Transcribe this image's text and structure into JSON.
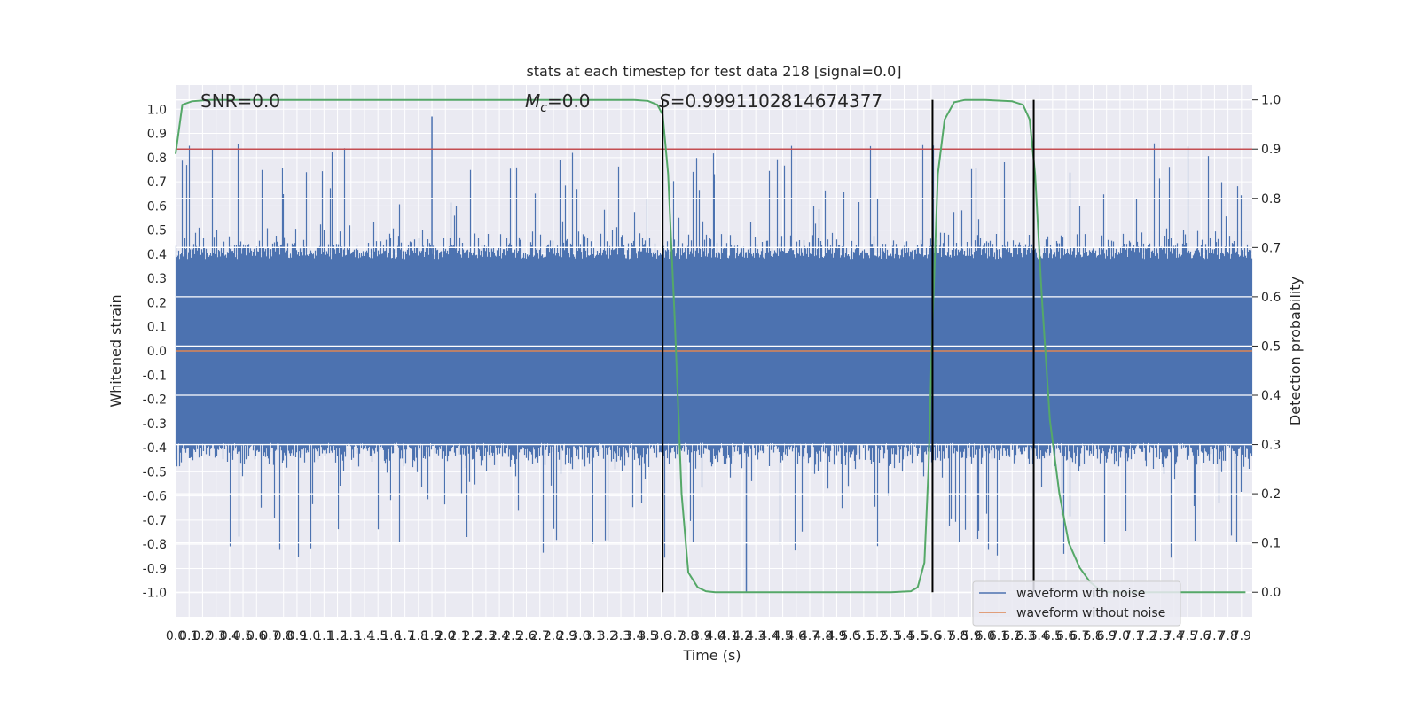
{
  "figure": {
    "title": "stats at each timestep for test data 218 [signal=0.0]",
    "annotations": {
      "snr": "SNR=0.0",
      "mc_symbol": "M",
      "mc_subscript": "c",
      "mc_value": "=0.0",
      "s_symbol": "S",
      "s_value": "=0.9991102814674377"
    }
  },
  "chart_data": {
    "type": "line",
    "title": "stats at each timestep for test data 218 [signal=0.0]",
    "xlabel": "Time (s)",
    "ylabel": "Whitened strain",
    "ylabel_right": "Detection probability",
    "xlim": [
      0.0,
      7.98
    ],
    "ylim": [
      -1.1,
      1.1
    ],
    "ylim_right": [
      -0.05,
      1.03
    ],
    "x_ticks": [
      "0.0",
      "0.1",
      "0.2",
      "0.3",
      "0.4",
      "0.5",
      "0.6",
      "0.7",
      "0.8",
      "0.9",
      "1.0",
      "1.1",
      "1.2",
      "1.3",
      "1.4",
      "1.5",
      "1.6",
      "1.7",
      "1.8",
      "1.9",
      "2.0",
      "2.1",
      "2.2",
      "2.3",
      "2.4",
      "2.5",
      "2.6",
      "2.7",
      "2.8",
      "2.9",
      "3.0",
      "3.1",
      "3.2",
      "3.3",
      "3.4",
      "3.5",
      "3.6",
      "3.7",
      "3.8",
      "3.9",
      "4.0",
      "4.1",
      "4.2",
      "4.3",
      "4.4",
      "4.5",
      "4.6",
      "4.7",
      "4.8",
      "4.9",
      "5.0",
      "5.1",
      "5.2",
      "5.3",
      "5.4",
      "5.5",
      "5.6",
      "5.7",
      "5.8",
      "5.9",
      "6.0",
      "6.1",
      "6.2",
      "6.3",
      "6.4",
      "6.5",
      "6.6",
      "6.7",
      "6.8",
      "6.9",
      "7.0",
      "7.1",
      "7.2",
      "7.3",
      "7.4",
      "7.5",
      "7.6",
      "7.7",
      "7.8",
      "7.9"
    ],
    "y_ticks_left": [
      "1.0",
      "0.9",
      "0.8",
      "0.7",
      "0.6",
      "0.5",
      "0.4",
      "0.3",
      "0.2",
      "0.1",
      "0.0",
      "-0.1",
      "-0.2",
      "-0.3",
      "-0.4",
      "-0.5",
      "-0.6",
      "-0.7",
      "-0.8",
      "-0.9",
      "-1.0"
    ],
    "y_ticks_right": [
      "1.0",
      "0.9",
      "0.8",
      "0.7",
      "0.6",
      "0.5",
      "0.4",
      "0.3",
      "0.2",
      "0.1",
      "0.0"
    ],
    "grid": true,
    "legend_position": "lower-right",
    "series": [
      {
        "name": "waveform with noise",
        "color": "#4c72b0",
        "style": "dense noise trace",
        "envelope_typical": 0.38,
        "peak_max": 0.97,
        "trough_min": -1.0
      },
      {
        "name": "waveform without noise",
        "color": "#dd8452",
        "values_constant": 0.0
      }
    ],
    "threshold": {
      "axis": "right",
      "value": 0.9,
      "color": "#c44e52"
    },
    "detection_probability": {
      "axis": "right",
      "color": "#55a868",
      "x": [
        0.0,
        0.05,
        0.12,
        0.25,
        0.5,
        1.0,
        2.0,
        3.0,
        3.4,
        3.5,
        3.57,
        3.61,
        3.65,
        3.7,
        3.75,
        3.8,
        3.87,
        3.93,
        4.0,
        4.1,
        4.3,
        4.6,
        5.0,
        5.3,
        5.45,
        5.5,
        5.55,
        5.58,
        5.61,
        5.65,
        5.7,
        5.77,
        5.85,
        6.0,
        6.2,
        6.28,
        6.33,
        6.37,
        6.42,
        6.48,
        6.55,
        6.62,
        6.7,
        6.78,
        6.85,
        6.92,
        7.0,
        7.3,
        7.93
      ],
      "y": [
        0.89,
        0.99,
        0.997,
        1.0,
        1.0,
        1.0,
        1.0,
        1.0,
        1.0,
        0.998,
        0.99,
        0.97,
        0.85,
        0.55,
        0.2,
        0.04,
        0.01,
        0.002,
        0.0,
        0.0,
        0.0,
        0.0,
        0.0,
        0.0,
        0.002,
        0.01,
        0.06,
        0.25,
        0.55,
        0.85,
        0.96,
        0.995,
        1.0,
        1.0,
        0.997,
        0.99,
        0.96,
        0.85,
        0.6,
        0.35,
        0.2,
        0.1,
        0.05,
        0.02,
        0.005,
        0.0,
        0.0,
        0.0,
        0.0
      ]
    },
    "vertical_markers": [
      3.61,
      5.61,
      6.36
    ],
    "marker_color": "#000000"
  }
}
